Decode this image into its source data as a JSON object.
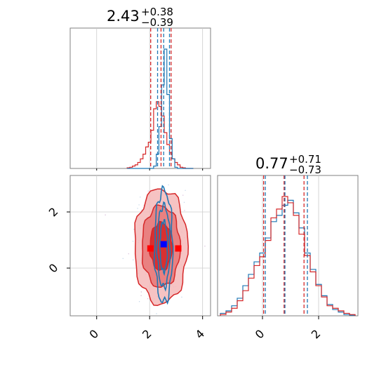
{
  "colors": {
    "series_a": "#d62728",
    "series_b": "#1f77b4",
    "truth_marker": "#ff0000",
    "median_marker": "#0000ff",
    "grid": "#cccccc",
    "axes": "#808080",
    "fill_dark": "#d62728",
    "fill_light": "#f08080"
  },
  "chart_data": [
    {
      "type": "area",
      "panel": "top-left histogram of parameter 1",
      "title": {
        "main": "2.43",
        "sup": "+0.38",
        "sub": "−0.39"
      },
      "xlim": [
        -1,
        4.3
      ],
      "grid": true,
      "x": [
        1.2,
        1.3,
        1.4,
        1.5,
        1.6,
        1.7,
        1.8,
        1.9,
        2.0,
        2.1,
        2.2,
        2.3,
        2.4,
        2.5,
        2.6,
        2.7,
        2.8,
        2.9,
        3.0,
        3.1,
        3.2,
        3.3,
        3.4,
        3.5,
        3.6
      ],
      "series": [
        {
          "values": [
            0.005,
            0.01,
            0.02,
            0.03,
            0.05,
            0.08,
            0.12,
            0.18,
            0.22,
            0.32,
            0.5,
            0.56,
            0.52,
            0.44,
            0.3,
            0.2,
            0.13,
            0.08,
            0.05,
            0.03,
            0.01,
            0.005,
            0.0,
            0.0,
            0.0
          ]
        },
        {
          "values": [
            0,
            0,
            0,
            0,
            0,
            0,
            0,
            0,
            0,
            0,
            0.02,
            0.12,
            0.35,
            0.7,
            1.0,
            0.62,
            0.25,
            0.08,
            0.01,
            0,
            0,
            0,
            0,
            0,
            0
          ]
        }
      ],
      "quantile_lines": {
        "red": [
          2.04,
          2.43,
          2.81
        ],
        "blue": [
          2.3,
          2.53,
          2.75
        ]
      }
    },
    {
      "type": "area",
      "panel": "bottom-right histogram of parameter 2",
      "title": {
        "main": "0.77",
        "sup": "+0.71",
        "sub": "−0.73"
      },
      "xlim": [
        -1.6,
        3.4
      ],
      "grid": true,
      "x": [
        -1.4,
        -1.2,
        -1.0,
        -0.8,
        -0.6,
        -0.4,
        -0.2,
        0.0,
        0.2,
        0.4,
        0.6,
        0.8,
        1.0,
        1.2,
        1.4,
        1.6,
        1.8,
        2.0,
        2.2,
        2.4,
        2.6,
        2.8,
        3.0,
        3.2
      ],
      "series": [
        {
          "values": [
            0.02,
            0.04,
            0.08,
            0.14,
            0.24,
            0.33,
            0.43,
            0.5,
            0.62,
            0.75,
            0.8,
            0.88,
            0.92,
            0.82,
            0.7,
            0.5,
            0.37,
            0.25,
            0.16,
            0.09,
            0.05,
            0.03,
            0.01,
            0.005
          ]
        },
        {
          "values": [
            0.01,
            0.03,
            0.06,
            0.12,
            0.2,
            0.3,
            0.4,
            0.47,
            0.6,
            0.78,
            0.85,
            0.95,
            0.9,
            0.8,
            0.65,
            0.48,
            0.35,
            0.24,
            0.15,
            0.08,
            0.06,
            0.04,
            0.02,
            0.01
          ]
        }
      ],
      "quantile_lines": {
        "red": [
          0.04,
          0.77,
          1.48
        ],
        "blue": [
          0.1,
          0.8,
          1.6
        ]
      }
    },
    {
      "type": "scatter",
      "panel": "bottom-left 2D contour of parameter 2 vs parameter 1",
      "xlim": [
        -1,
        4.3
      ],
      "ylim": [
        -1.7,
        3.3
      ],
      "grid": true,
      "xticks": [
        "0",
        "2",
        "4"
      ],
      "yticks": [
        "0",
        "2"
      ],
      "contours": {
        "red_filled": [
          {
            "level": "outer",
            "center": [
              2.43,
              0.77
            ],
            "half_width": [
              1.0,
              2.05
            ]
          },
          {
            "level": "middle",
            "center": [
              2.43,
              0.77
            ],
            "half_width": [
              0.72,
              1.45
            ]
          },
          {
            "level": "inner",
            "center": [
              2.43,
              0.77
            ],
            "half_width": [
              0.42,
              0.85
            ]
          }
        ],
        "blue_lines": [
          {
            "level": "outer",
            "center": [
              2.53,
              0.77
            ],
            "half_width": [
              0.34,
              2.0
            ]
          },
          {
            "level": "middle",
            "center": [
              2.53,
              0.77
            ],
            "half_width": [
              0.24,
              1.45
            ]
          },
          {
            "level": "inner",
            "center": [
              2.53,
              0.77
            ],
            "half_width": [
              0.14,
              0.9
            ]
          }
        ]
      },
      "markers": [
        {
          "color": "red",
          "x": 2.03,
          "y": 0.7
        },
        {
          "color": "red",
          "x": 3.08,
          "y": 0.7
        },
        {
          "color": "blue",
          "x": 2.53,
          "y": 0.85
        }
      ]
    }
  ],
  "bottom_xticks_right": [
    "0",
    "2"
  ]
}
